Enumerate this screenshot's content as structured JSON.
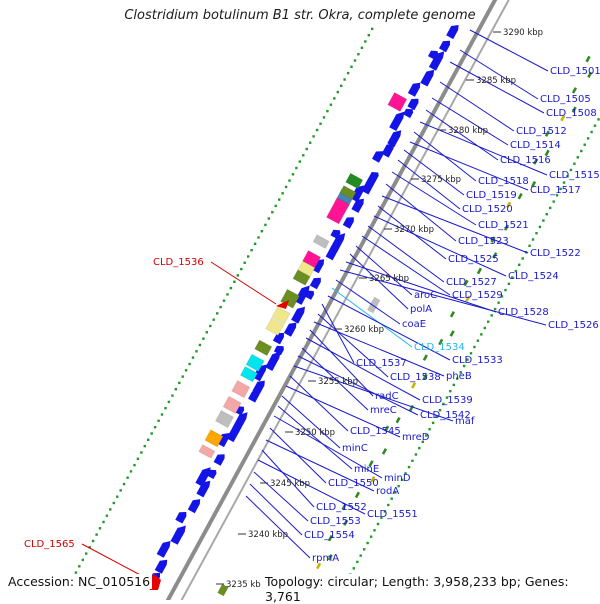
{
  "title": "Clostridium botulinum B1 str. Okra, complete genome",
  "footer": {
    "accession": "Accession: NC_010516",
    "summary": "Topology: circular; Length: 3,958,233 bp; Genes: 3,761"
  },
  "colors": {
    "gene_label": "#1a1acc",
    "highlight_label": "#d40000",
    "selected_label": "#22b8e8",
    "backbone": "#8c8c8c",
    "dots": "#1f9a2a",
    "dashes": "#2f8a1f",
    "forward_gene": "#1414e6",
    "feature_colors": [
      "#ff1493",
      "#f0e68c",
      "#6b8e23",
      "#00e5ee",
      "#f4a7a7",
      "#ffa500",
      "#4682b4",
      "#228b22",
      "#bebebe"
    ]
  },
  "ticks": [
    {
      "label": "3290 kbp"
    },
    {
      "label": "3285 kbp"
    },
    {
      "label": "3280 kbp"
    },
    {
      "label": "3275 kbp"
    },
    {
      "label": "3270 kbp"
    },
    {
      "label": "3265 kbp"
    },
    {
      "label": "3260 kbp"
    },
    {
      "label": "3255 kbp"
    },
    {
      "label": "3250 kbp"
    },
    {
      "label": "3245 kbp"
    },
    {
      "label": "3240 kbp"
    },
    {
      "label": "3235 kbp"
    }
  ],
  "gene_labels": [
    {
      "name": "CLD_1501"
    },
    {
      "name": "CLD_1505"
    },
    {
      "name": "CLD_1508"
    },
    {
      "name": "CLD_1512"
    },
    {
      "name": "CLD_1514"
    },
    {
      "name": "CLD_1516"
    },
    {
      "name": "CLD_1515"
    },
    {
      "name": "CLD_1518"
    },
    {
      "name": "CLD_1517"
    },
    {
      "name": "CLD_1519"
    },
    {
      "name": "CLD_1520"
    },
    {
      "name": "CLD_1521"
    },
    {
      "name": "CLD_1523"
    },
    {
      "name": "CLD_1522"
    },
    {
      "name": "CLD_1525"
    },
    {
      "name": "CLD_1524"
    },
    {
      "name": "CLD_1527"
    },
    {
      "name": "CLD_1529"
    },
    {
      "name": "aroC"
    },
    {
      "name": "polA"
    },
    {
      "name": "CLD_1528"
    },
    {
      "name": "CLD_1526"
    },
    {
      "name": "coaE"
    },
    {
      "name": "CLD_1534"
    },
    {
      "name": "CLD_1533"
    },
    {
      "name": "CLD_1537"
    },
    {
      "name": "CLD_1538"
    },
    {
      "name": "pheB"
    },
    {
      "name": "radC"
    },
    {
      "name": "CLD_1539"
    },
    {
      "name": "mreC"
    },
    {
      "name": "CLD_1542"
    },
    {
      "name": "maf"
    },
    {
      "name": "CLD_1545"
    },
    {
      "name": "mreD"
    },
    {
      "name": "minC"
    },
    {
      "name": "minE"
    },
    {
      "name": "minD"
    },
    {
      "name": "CLD_1550"
    },
    {
      "name": "rodA"
    },
    {
      "name": "CLD_1552"
    },
    {
      "name": "CLD_1551"
    },
    {
      "name": "CLD_1553"
    },
    {
      "name": "CLD_1554"
    },
    {
      "name": "rpmA"
    },
    {
      "name": "CLD_1536"
    },
    {
      "name": "CLD_1565"
    }
  ]
}
